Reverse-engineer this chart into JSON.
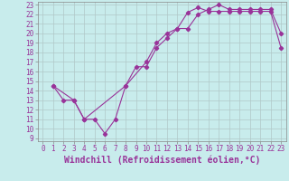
{
  "xlabel": "Windchill (Refroidissement éolien,°C)",
  "background_color": "#c8ecec",
  "line_color": "#993399",
  "xlim": [
    -0.5,
    23.5
  ],
  "ylim": [
    8.7,
    23.3
  ],
  "x_ticks": [
    0,
    1,
    2,
    3,
    4,
    5,
    6,
    7,
    8,
    9,
    10,
    11,
    12,
    13,
    14,
    15,
    16,
    17,
    18,
    19,
    20,
    21,
    22,
    23
  ],
  "y_ticks": [
    9,
    10,
    11,
    12,
    13,
    14,
    15,
    16,
    17,
    18,
    19,
    20,
    21,
    22,
    23
  ],
  "line1_x": [
    1,
    2,
    3,
    4,
    5,
    6,
    7,
    8,
    9,
    10,
    11,
    12,
    13,
    14,
    15,
    16,
    17,
    18,
    19,
    20,
    21,
    22,
    23
  ],
  "line1_y": [
    14.5,
    13,
    13,
    11,
    11,
    9.5,
    11,
    14.5,
    16.5,
    16.5,
    18.5,
    19.5,
    20.5,
    20.5,
    22.0,
    22.5,
    23.0,
    22.5,
    22.5,
    22.5,
    22.5,
    22.5,
    20.0
  ],
  "line2_x": [
    1,
    3,
    4,
    8,
    10,
    11,
    12,
    13,
    14,
    15,
    16,
    17,
    18,
    19,
    20,
    21,
    22,
    23
  ],
  "line2_y": [
    14.5,
    13,
    11,
    14.5,
    17.0,
    19,
    20,
    20.5,
    22.2,
    22.7,
    22.3,
    22.3,
    22.3,
    22.3,
    22.3,
    22.3,
    22.3,
    18.5
  ],
  "grid_color": "#b0c8c8",
  "tick_fontsize": 5.5,
  "xlabel_fontsize": 7
}
